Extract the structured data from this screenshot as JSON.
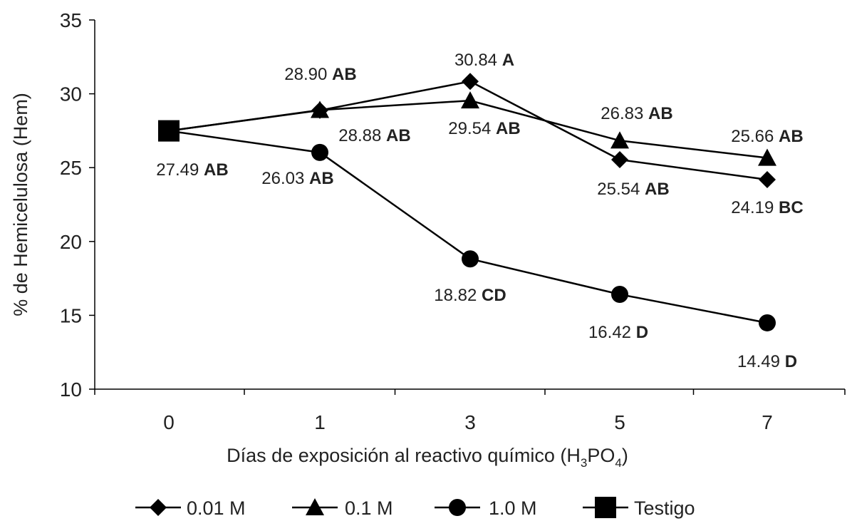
{
  "chart_data": {
    "type": "line",
    "title": "",
    "xlabel": "Días de exposición al reactivo químico (H",
    "xlabel_sub1": "3",
    "xlabel_mid": "PO",
    "xlabel_sub2": "4",
    "xlabel_end": ")",
    "ylabel": "% de Hemicelulosa (Hem)",
    "categories": [
      "0",
      "1",
      "3",
      "5",
      "7"
    ],
    "ylim": [
      10,
      35
    ],
    "yticks": [
      10,
      15,
      20,
      25,
      30,
      35
    ],
    "series": [
      {
        "name": "0.01 M",
        "marker": "diamond",
        "values": [
          27.49,
          28.88,
          30.84,
          25.54,
          24.19
        ]
      },
      {
        "name": "0.1 M",
        "marker": "triangle",
        "values": [
          27.49,
          28.9,
          29.54,
          26.83,
          25.66
        ]
      },
      {
        "name": "1.0 M",
        "marker": "circle",
        "values": [
          27.49,
          26.03,
          18.82,
          16.42,
          14.49
        ]
      },
      {
        "name": "Testigo",
        "marker": "square",
        "values": [
          27.49,
          null,
          null,
          null,
          null
        ]
      }
    ],
    "annotations": [
      {
        "value": "27.49",
        "letter": "AB",
        "cat": 0
      },
      {
        "value": "28.90",
        "letter": "AB",
        "cat": 1
      },
      {
        "value": "28.88",
        "letter": "AB",
        "cat": 1
      },
      {
        "value": "26.03",
        "letter": "AB",
        "cat": 1
      },
      {
        "value": "30.84",
        "letter": "A",
        "cat": 2
      },
      {
        "value": "29.54",
        "letter": "AB",
        "cat": 2
      },
      {
        "value": "18.82",
        "letter": "CD",
        "cat": 2
      },
      {
        "value": "26.83",
        "letter": "AB",
        "cat": 3
      },
      {
        "value": "25.54",
        "letter": "AB",
        "cat": 3
      },
      {
        "value": "16.42",
        "letter": "D",
        "cat": 3
      },
      {
        "value": "25.66",
        "letter": "AB",
        "cat": 4
      },
      {
        "value": "24.19",
        "letter": "BC",
        "cat": 4
      },
      {
        "value": "14.49",
        "letter": "D",
        "cat": 4
      }
    ],
    "legend_position": "bottom",
    "grid": false
  },
  "colors": {
    "line": "#000000",
    "text": "#222222"
  }
}
